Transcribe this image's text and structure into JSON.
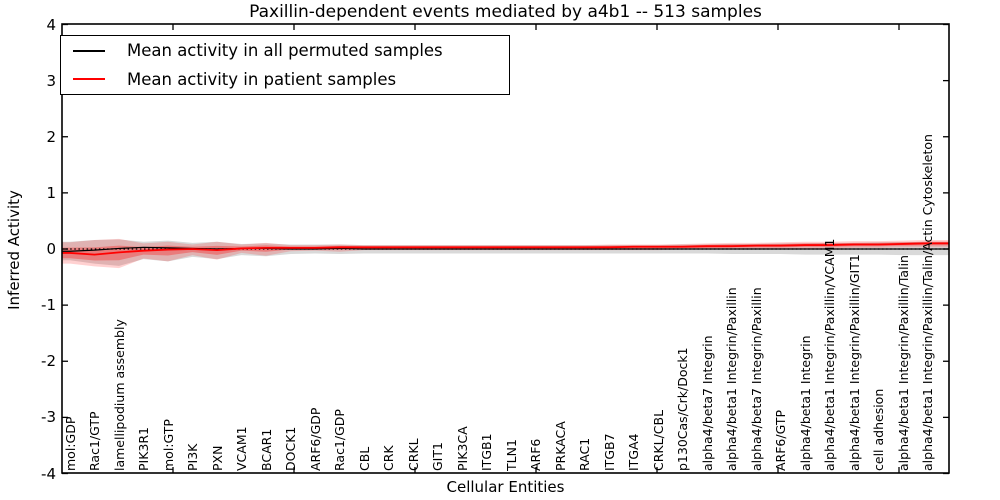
{
  "title": "Paxillin-dependent events mediated by a4b1 -- 513 samples",
  "axes": {
    "ylabel": "Inferred Activity",
    "xlabel": "Cellular Entities"
  },
  "legend": {
    "entries": [
      {
        "label": "Mean activity in all permuted samples",
        "color": "#000000"
      },
      {
        "label": "Mean activity in patient samples",
        "color": "#ff0000"
      }
    ]
  },
  "chart_data": {
    "type": "line",
    "title": "Paxillin-dependent events mediated by a4b1 -- 513 samples",
    "xlabel": "Cellular Entities",
    "ylabel": "Inferred Activity",
    "ylim": [
      -4,
      4
    ],
    "yticks": [
      4,
      3,
      2,
      1,
      0,
      -1,
      -2,
      -3,
      -4
    ],
    "grid": false,
    "legend_position": "upper left",
    "zero_line": {
      "y": 0,
      "style": "dotted",
      "color": "#000000"
    },
    "band_colors": {
      "permuted": "#808080",
      "patient": "#ff0000"
    },
    "categories": [
      "mol:GDP",
      "Rac1/GTP",
      "lamellipodium assembly",
      "PIK3R1",
      "mol:GTP",
      "PI3K",
      "PXN",
      "VCAM1",
      "BCAR1",
      "DOCK1",
      "ARF6/GDP",
      "Rac1/GDP",
      "CBL",
      "CRK",
      "CRKL",
      "GIT1",
      "PIK3CA",
      "ITGB1",
      "TLN1",
      "ARF6",
      "PRKACA",
      "RAC1",
      "ITGB7",
      "ITGA4",
      "CRKL/CBL",
      "p130Cas/Crk/Dock1",
      "alpha4/beta7 Integrin",
      "alpha4/beta1 Integrin/Paxillin",
      "alpha4/beta7 Integrin/Paxillin",
      "ARF6/GTP",
      "alpha4/beta1 Integrin",
      "alpha4/beta1 Integrin/Paxillin/VCAM1",
      "alpha4/beta1 Integrin/Paxillin/GIT1",
      "cell adhesion",
      "alpha4/beta1 Integrin/Paxillin/Talin",
      "alpha4/beta1 Integrin/Paxillin/Talin/Actin Cytoskeleton"
    ],
    "series": [
      {
        "name": "Mean activity in all permuted samples",
        "color": "#000000",
        "values": [
          -0.04,
          -0.02,
          0.01,
          0.03,
          0.02,
          0.01,
          0.0,
          0.01,
          0.01,
          0.0,
          0.0,
          0.01,
          0.0,
          0.0,
          0.0,
          0.0,
          0.0,
          0.0,
          0.0,
          0.0,
          0.0,
          0.0,
          0.0,
          0.0,
          0.0,
          0.0,
          0.0,
          0.0,
          0.0,
          0.0,
          0.0,
          0.0,
          0.0,
          0.0,
          0.0,
          0.0
        ],
        "band_upper": [
          0.13,
          0.16,
          0.17,
          0.13,
          0.15,
          0.11,
          0.13,
          0.09,
          0.1,
          0.08,
          0.08,
          0.08,
          0.07,
          0.07,
          0.07,
          0.07,
          0.07,
          0.07,
          0.07,
          0.07,
          0.07,
          0.07,
          0.07,
          0.07,
          0.07,
          0.08,
          0.08,
          0.09,
          0.09,
          0.1,
          0.1,
          0.11,
          0.11,
          0.12,
          0.12,
          0.13
        ],
        "band_lower": [
          -0.2,
          -0.26,
          -0.3,
          -0.18,
          -0.22,
          -0.14,
          -0.18,
          -0.11,
          -0.13,
          -0.09,
          -0.08,
          -0.09,
          -0.08,
          -0.08,
          -0.08,
          -0.08,
          -0.08,
          -0.08,
          -0.08,
          -0.08,
          -0.08,
          -0.08,
          -0.08,
          -0.08,
          -0.08,
          -0.08,
          -0.08,
          -0.09,
          -0.09,
          -0.09,
          -0.1,
          -0.1,
          -0.1,
          -0.1,
          -0.11,
          -0.11
        ]
      },
      {
        "name": "Mean activity in patient samples",
        "color": "#ff0000",
        "values": [
          -0.07,
          -0.1,
          -0.06,
          -0.03,
          -0.01,
          0.0,
          -0.02,
          0.01,
          0.02,
          0.02,
          0.02,
          0.03,
          0.03,
          0.03,
          0.03,
          0.03,
          0.03,
          0.03,
          0.03,
          0.03,
          0.03,
          0.03,
          0.03,
          0.04,
          0.04,
          0.04,
          0.05,
          0.05,
          0.06,
          0.06,
          0.07,
          0.07,
          0.08,
          0.08,
          0.09,
          0.1
        ],
        "band_upper": [
          0.12,
          0.16,
          0.18,
          0.1,
          0.13,
          0.08,
          0.13,
          0.08,
          0.11,
          0.07,
          0.07,
          0.08,
          0.07,
          0.07,
          0.07,
          0.07,
          0.07,
          0.07,
          0.07,
          0.07,
          0.07,
          0.07,
          0.08,
          0.08,
          0.08,
          0.09,
          0.1,
          0.11,
          0.11,
          0.12,
          0.13,
          0.13,
          0.14,
          0.14,
          0.15,
          0.16
        ],
        "band_lower": [
          -0.26,
          -0.31,
          -0.34,
          -0.17,
          -0.22,
          -0.11,
          -0.19,
          -0.07,
          -0.12,
          -0.04,
          -0.03,
          -0.05,
          -0.02,
          -0.02,
          -0.02,
          -0.02,
          -0.02,
          -0.02,
          -0.02,
          -0.02,
          -0.02,
          -0.02,
          -0.02,
          -0.02,
          -0.02,
          -0.01,
          -0.01,
          0.0,
          0.0,
          0.0,
          0.01,
          0.01,
          0.02,
          0.02,
          0.03,
          0.03
        ]
      }
    ]
  }
}
